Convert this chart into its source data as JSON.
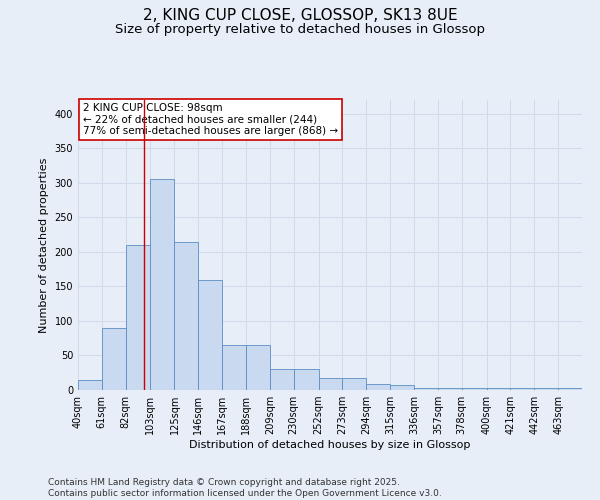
{
  "title": "2, KING CUP CLOSE, GLOSSOP, SK13 8UE",
  "subtitle": "Size of property relative to detached houses in Glossop",
  "xlabel": "Distribution of detached houses by size in Glossop",
  "ylabel": "Number of detached properties",
  "bar_left_edges": [
    40,
    61,
    82,
    103,
    125,
    146,
    167,
    188,
    209,
    230,
    252,
    273,
    294,
    315,
    336,
    357,
    378,
    400,
    421,
    442,
    463
  ],
  "bar_widths": [
    21,
    21,
    21,
    22,
    21,
    21,
    21,
    21,
    21,
    22,
    21,
    21,
    21,
    21,
    21,
    21,
    22,
    21,
    21,
    21,
    21
  ],
  "bar_heights": [
    15,
    90,
    210,
    305,
    215,
    160,
    65,
    65,
    30,
    30,
    17,
    17,
    9,
    7,
    3,
    3,
    3,
    3,
    3,
    3,
    3
  ],
  "bar_color": "#c9d9f0",
  "bar_edge_color": "#5b8ec4",
  "vline_x": 98,
  "vline_color": "#cc0000",
  "annotation_text": "2 KING CUP CLOSE: 98sqm\n← 22% of detached houses are smaller (244)\n77% of semi-detached houses are larger (868) →",
  "annotation_box_color": "#ffffff",
  "annotation_box_edge_color": "#cc0000",
  "tick_labels": [
    "40sqm",
    "61sqm",
    "82sqm",
    "103sqm",
    "125sqm",
    "146sqm",
    "167sqm",
    "188sqm",
    "209sqm",
    "230sqm",
    "252sqm",
    "273sqm",
    "294sqm",
    "315sqm",
    "336sqm",
    "357sqm",
    "378sqm",
    "400sqm",
    "421sqm",
    "442sqm",
    "463sqm"
  ],
  "tick_positions": [
    40,
    61,
    82,
    103,
    125,
    146,
    167,
    188,
    209,
    230,
    252,
    273,
    294,
    315,
    336,
    357,
    378,
    400,
    421,
    442,
    463
  ],
  "xmin": 40,
  "xmax": 484,
  "ylim": [
    0,
    420
  ],
  "yticks": [
    0,
    50,
    100,
    150,
    200,
    250,
    300,
    350,
    400
  ],
  "grid_color": "#cfdaea",
  "background_color": "#e8eef8",
  "footer_text": "Contains HM Land Registry data © Crown copyright and database right 2025.\nContains public sector information licensed under the Open Government Licence v3.0.",
  "title_fontsize": 11,
  "subtitle_fontsize": 9.5,
  "axis_label_fontsize": 8,
  "tick_fontsize": 7,
  "annotation_fontsize": 7.5,
  "footer_fontsize": 6.5
}
